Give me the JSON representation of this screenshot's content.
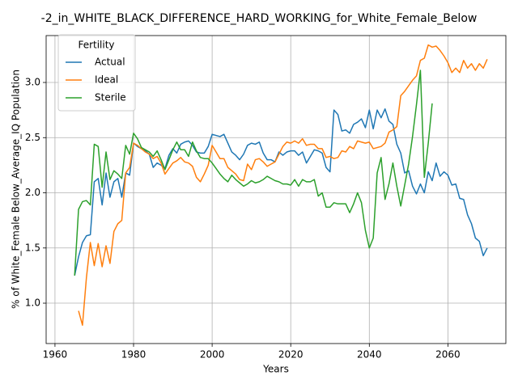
{
  "chart_data": {
    "type": "line",
    "title": "-2_in_WHITE_BLACK_DIFFERENCE_HARD_WORKING_for_White_Female_Below",
    "x_label": "Years",
    "y_label": "% of White_Female Below_Average_IQ Population",
    "legend_title": "Fertility",
    "legend_position": "upper left",
    "grid": true,
    "x": [
      1965,
      1966,
      1967,
      1968,
      1969,
      1970,
      1971,
      1972,
      1973,
      1974,
      1975,
      1976,
      1977,
      1978,
      1979,
      1980,
      1981,
      1982,
      1983,
      1984,
      1985,
      1986,
      1987,
      1988,
      1989,
      1990,
      1991,
      1992,
      1993,
      1994,
      1995,
      1996,
      1997,
      1998,
      1999,
      2000,
      2001,
      2002,
      2003,
      2004,
      2005,
      2006,
      2007,
      2008,
      2009,
      2010,
      2011,
      2012,
      2013,
      2014,
      2015,
      2016,
      2017,
      2018,
      2019,
      2020,
      2021,
      2022,
      2023,
      2024,
      2025,
      2026,
      2027,
      2028,
      2029,
      2030,
      2031,
      2032,
      2033,
      2034,
      2035,
      2036,
      2037,
      2038,
      2039,
      2040,
      2041,
      2042,
      2043,
      2044,
      2045,
      2046,
      2047,
      2048,
      2049,
      2050,
      2051,
      2052,
      2053,
      2054,
      2055,
      2056,
      2057,
      2058,
      2059,
      2060,
      2061,
      2062,
      2063,
      2064,
      2065,
      2066,
      2067,
      2068,
      2069,
      2070
    ],
    "series": [
      {
        "name": "Actual",
        "color": "#1f77b4",
        "values": [
          1.25,
          1.42,
          1.55,
          1.61,
          1.62,
          2.1,
          2.13,
          1.89,
          2.18,
          1.96,
          2.1,
          2.13,
          1.96,
          2.18,
          2.16,
          2.45,
          2.42,
          2.4,
          2.38,
          2.35,
          2.23,
          2.27,
          2.25,
          2.22,
          2.34,
          2.4,
          2.36,
          2.44,
          2.46,
          2.47,
          2.43,
          2.37,
          2.36,
          2.36,
          2.42,
          2.53,
          2.52,
          2.51,
          2.53,
          2.45,
          2.37,
          2.34,
          2.3,
          2.35,
          2.43,
          2.45,
          2.44,
          2.46,
          2.36,
          2.3,
          2.3,
          2.28,
          2.37,
          2.34,
          2.37,
          2.38,
          2.38,
          2.34,
          2.37,
          2.27,
          2.33,
          2.39,
          2.38,
          2.36,
          2.23,
          2.19,
          2.75,
          2.71,
          2.56,
          2.57,
          2.54,
          2.62,
          2.64,
          2.67,
          2.59,
          2.75,
          2.58,
          2.75,
          2.68,
          2.76,
          2.65,
          2.62,
          2.44,
          2.36,
          2.18,
          2.2,
          2.06,
          1.99,
          2.08,
          2.0,
          2.19,
          2.11,
          2.27,
          2.15,
          2.19,
          2.16,
          2.07,
          2.08,
          1.95,
          1.94,
          1.8,
          1.72,
          1.59,
          1.56,
          1.43,
          1.5
        ]
      },
      {
        "name": "Ideal",
        "color": "#ff7f0e",
        "values": [
          null,
          0.93,
          0.8,
          1.23,
          1.55,
          1.34,
          1.54,
          1.33,
          1.52,
          1.36,
          1.65,
          1.72,
          1.75,
          2.18,
          2.23,
          2.45,
          2.43,
          2.4,
          2.37,
          2.35,
          2.31,
          2.33,
          2.27,
          2.17,
          2.22,
          2.27,
          2.29,
          2.32,
          2.28,
          2.27,
          2.24,
          2.14,
          2.1,
          2.17,
          2.25,
          2.43,
          2.37,
          2.31,
          2.31,
          2.23,
          2.2,
          2.17,
          2.12,
          2.11,
          2.26,
          2.21,
          2.3,
          2.31,
          2.28,
          2.24,
          2.26,
          2.28,
          2.35,
          2.42,
          2.46,
          2.45,
          2.47,
          2.45,
          2.49,
          2.43,
          2.44,
          2.44,
          2.4,
          2.4,
          2.32,
          2.33,
          2.31,
          2.32,
          2.38,
          2.37,
          2.42,
          2.4,
          2.47,
          2.46,
          2.45,
          2.46,
          2.4,
          2.41,
          2.42,
          2.45,
          2.55,
          2.57,
          2.6,
          2.88,
          2.92,
          2.97,
          3.02,
          3.06,
          3.2,
          3.22,
          3.34,
          3.32,
          3.33,
          3.29,
          3.24,
          3.18,
          3.09,
          3.13,
          3.09,
          3.2,
          3.13,
          3.17,
          3.11,
          3.17,
          3.13,
          3.21
        ]
      },
      {
        "name": "Sterile",
        "color": "#2ca02c",
        "values": [
          1.25,
          1.85,
          1.92,
          1.93,
          1.89,
          2.44,
          2.42,
          2.05,
          2.37,
          2.12,
          2.2,
          2.17,
          2.13,
          2.43,
          2.35,
          2.54,
          2.49,
          2.41,
          2.39,
          2.37,
          2.33,
          2.38,
          2.3,
          2.21,
          2.3,
          2.39,
          2.46,
          2.39,
          2.39,
          2.33,
          2.46,
          2.38,
          2.32,
          2.31,
          2.31,
          2.27,
          2.22,
          2.17,
          2.13,
          2.1,
          2.16,
          2.12,
          2.09,
          2.06,
          2.08,
          2.11,
          2.09,
          2.1,
          2.12,
          2.15,
          2.13,
          2.11,
          2.1,
          2.08,
          2.08,
          2.07,
          2.12,
          2.06,
          2.12,
          2.1,
          2.1,
          2.12,
          1.97,
          2.0,
          1.87,
          1.87,
          1.91,
          1.9,
          1.9,
          1.9,
          1.82,
          1.9,
          2.0,
          1.91,
          1.66,
          1.5,
          1.59,
          2.18,
          2.32,
          1.94,
          2.08,
          2.27,
          2.06,
          1.88,
          2.07,
          2.26,
          2.51,
          2.8,
          3.11,
          2.14,
          2.45,
          2.81,
          null,
          null,
          null,
          null,
          null,
          null,
          null,
          null,
          null,
          null,
          null,
          null,
          null,
          null
        ]
      }
    ],
    "xlim": [
      1957.75,
      2074.75
    ],
    "ylim": [
      0.634,
      3.425
    ],
    "xticks": [
      1960,
      1980,
      2000,
      2020,
      2040,
      2060
    ],
    "yticks": [
      {
        "value": 1,
        "label": "1.0"
      },
      {
        "value": 1.5,
        "label": "1.5"
      },
      {
        "value": 2,
        "label": "2.0"
      },
      {
        "value": 2.5,
        "label": "2.5"
      },
      {
        "value": 3,
        "label": "3.0"
      }
    ]
  }
}
